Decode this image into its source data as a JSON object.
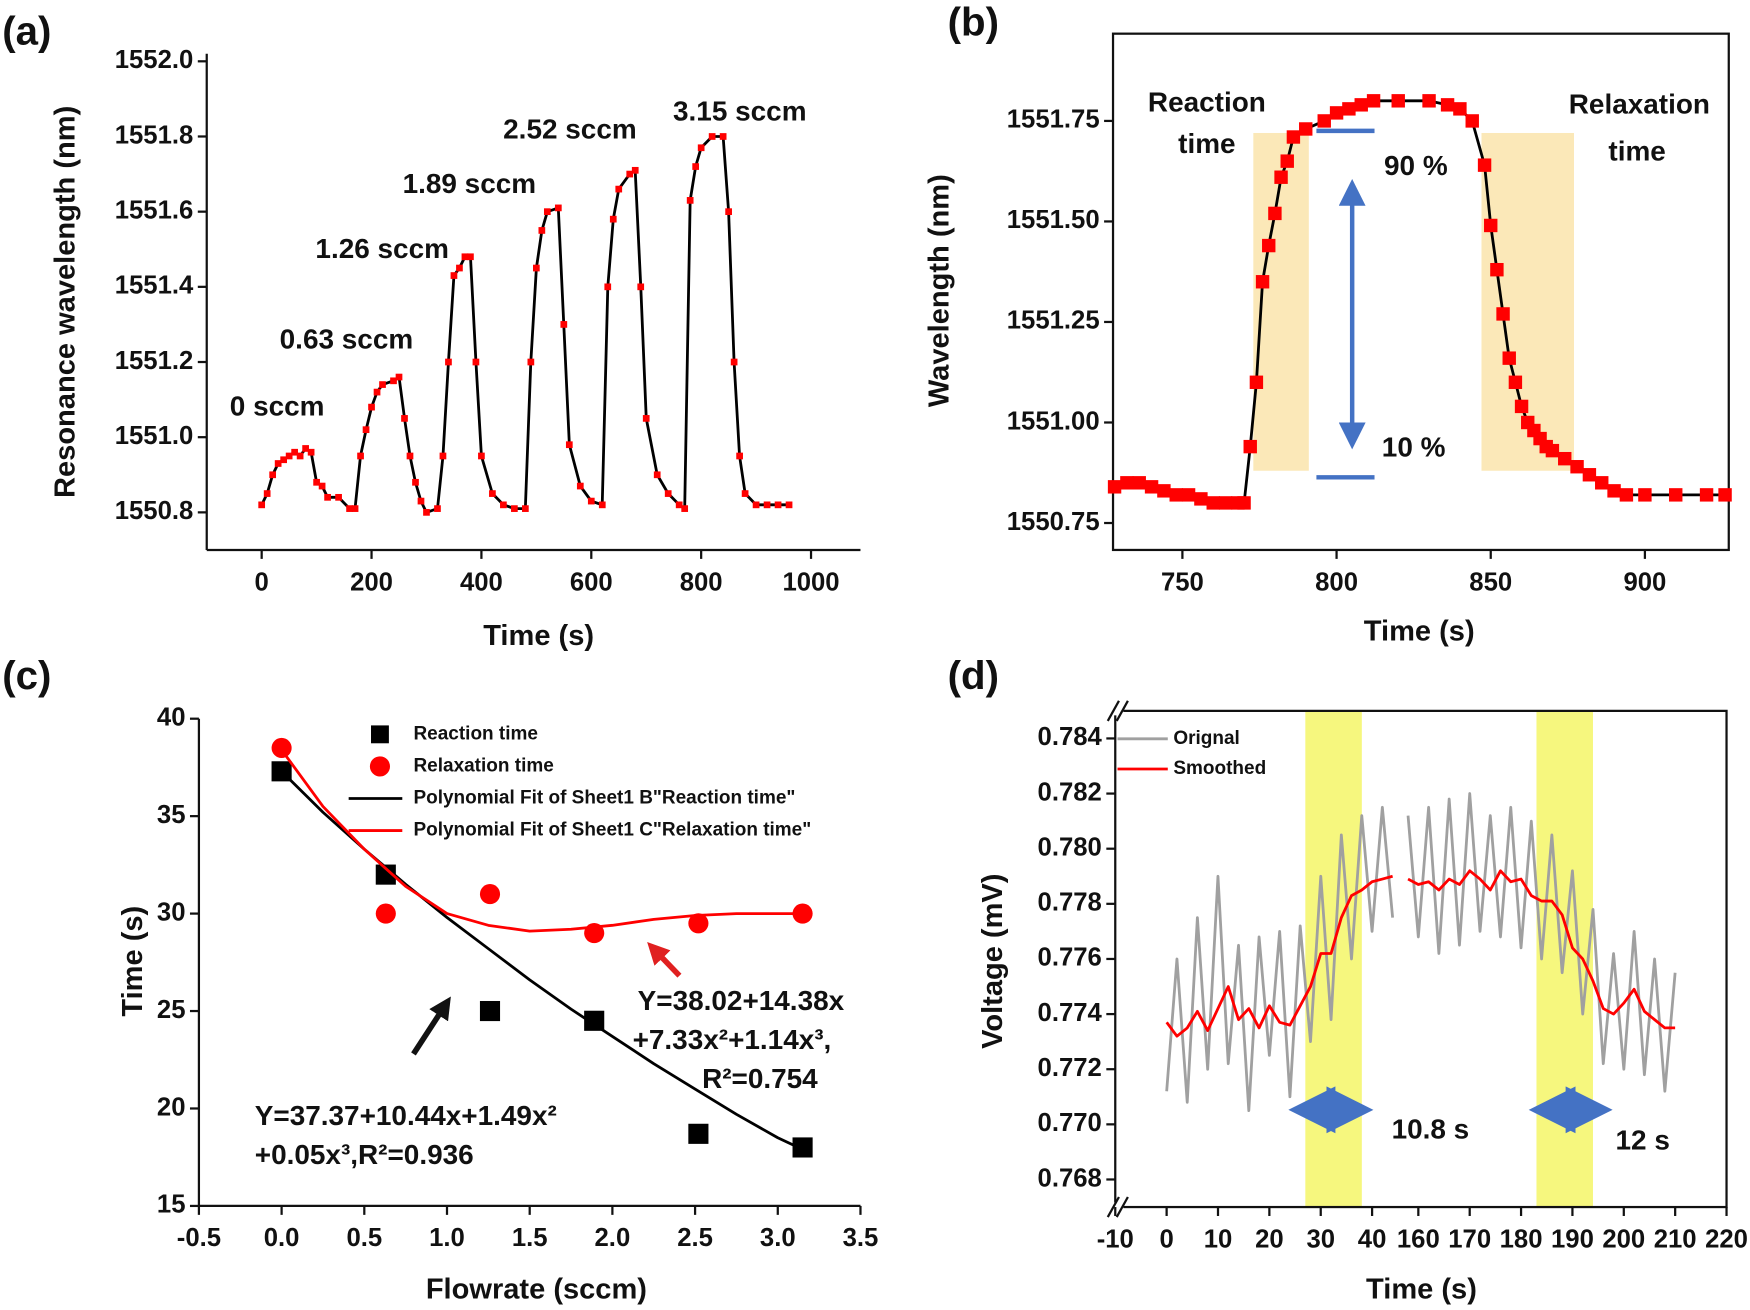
{
  "chart_data": [
    {
      "type": "line",
      "label": "(a)",
      "xlabel": "Time (s)",
      "ylabel": "Resonance wavelength (nm)",
      "xlim": [
        -100,
        1090
      ],
      "ylim": [
        1550.7,
        1552.02
      ],
      "xticks": [
        0,
        200,
        400,
        600,
        800,
        1000
      ],
      "yticks": [
        1550.8,
        {
          "value": 1551,
          "label": "1551.0"
        },
        1551.2,
        1551.4,
        1551.6,
        1551.8,
        {
          "value": 1552,
          "label": "1552.0"
        }
      ],
      "annotations": [
        "0 sccm",
        "0.63 sccm",
        "1.26 sccm",
        "1.89 sccm",
        "2.52 sccm",
        "3.15 sccm"
      ],
      "series": [
        {
          "mode": "line+markers",
          "color": "#ff0000",
          "line_color": "#000000",
          "x": [
            0,
            10,
            20,
            30,
            40,
            50,
            60,
            70,
            80,
            90,
            100,
            110,
            120,
            140,
            160,
            170,
            180,
            190,
            200,
            210,
            220,
            240,
            250,
            260,
            270,
            280,
            290,
            300,
            320,
            330,
            340,
            350,
            360,
            370,
            380,
            390,
            400,
            420,
            440,
            460,
            480,
            490,
            500,
            510,
            520,
            540,
            550,
            560,
            580,
            600,
            620,
            630,
            640,
            650,
            670,
            680,
            690,
            700,
            720,
            740,
            760,
            770,
            780,
            790,
            800,
            820,
            840,
            850,
            860,
            870,
            880,
            900,
            920,
            940,
            960
          ],
          "values": [
            1550.82,
            1550.85,
            1550.9,
            1550.93,
            1550.94,
            1550.95,
            1550.96,
            1550.95,
            1550.97,
            1550.96,
            1550.88,
            1550.87,
            1550.84,
            1550.84,
            1550.81,
            1550.81,
            1550.95,
            1551.02,
            1551.08,
            1551.12,
            1551.14,
            1551.15,
            1551.16,
            1551.05,
            1550.95,
            1550.88,
            1550.83,
            1550.8,
            1550.81,
            1550.95,
            1551.2,
            1551.43,
            1551.45,
            1551.48,
            1551.48,
            1551.2,
            1550.95,
            1550.85,
            1550.82,
            1550.81,
            1550.81,
            1551.2,
            1551.45,
            1551.55,
            1551.6,
            1551.61,
            1551.3,
            1550.98,
            1550.87,
            1550.83,
            1550.82,
            1551.4,
            1551.58,
            1551.66,
            1551.7,
            1551.71,
            1551.4,
            1551.05,
            1550.9,
            1550.85,
            1550.82,
            1550.81,
            1551.63,
            1551.72,
            1551.77,
            1551.8,
            1551.8,
            1551.6,
            1551.2,
            1550.95,
            1550.85,
            1550.82,
            1550.82,
            1550.82,
            1550.82
          ]
        }
      ]
    },
    {
      "type": "line",
      "label": "(b)",
      "xlabel": "Time (s)",
      "ylabel": "Wavelength (nm)",
      "xlim": [
        727.5,
        927.2
      ],
      "ylim": [
        1550.683,
        1551.967
      ],
      "xticks": [
        750,
        800,
        850,
        900
      ],
      "yticks": [
        1550.75,
        {
          "value": 1551,
          "label": "1551.00"
        },
        1551.25,
        {
          "value": 1551.5,
          "label": "1551.50"
        },
        1551.75
      ],
      "shaded_regions": [
        {
          "x": [
            773,
            791
          ],
          "y": [
            1550.88,
            1551.72
          ]
        },
        {
          "x": [
            847,
            877
          ],
          "y": [
            1550.88,
            1551.72
          ]
        }
      ],
      "shade_color": "#fbe8b8",
      "annotations": [
        "Reaction",
        "time",
        "Relaxation",
        "time",
        "90 %",
        "10 %"
      ],
      "series": [
        {
          "mode": "line+markers",
          "color": "#ff0000",
          "line_color": "#000000",
          "x": [
            728,
            732,
            736,
            740,
            744,
            748,
            752,
            756,
            760,
            764,
            768,
            770,
            772,
            774,
            776,
            778,
            780,
            782,
            784,
            786,
            790,
            796,
            800,
            804,
            808,
            812,
            820,
            830,
            836,
            840,
            844,
            848,
            850,
            852,
            854,
            856,
            858,
            860,
            862,
            864,
            866,
            868,
            870,
            874,
            878,
            882,
            886,
            890,
            894,
            900,
            910,
            920,
            926
          ],
          "values": [
            1550.84,
            1550.85,
            1550.85,
            1550.84,
            1550.83,
            1550.82,
            1550.82,
            1550.81,
            1550.8,
            1550.8,
            1550.8,
            1550.8,
            1550.94,
            1551.1,
            1551.35,
            1551.44,
            1551.52,
            1551.61,
            1551.65,
            1551.71,
            1551.73,
            1551.75,
            1551.77,
            1551.78,
            1551.79,
            1551.8,
            1551.8,
            1551.8,
            1551.79,
            1551.78,
            1551.75,
            1551.64,
            1551.49,
            1551.38,
            1551.27,
            1551.16,
            1551.1,
            1551.04,
            1551.0,
            1550.98,
            1550.96,
            1550.94,
            1550.93,
            1550.91,
            1550.89,
            1550.87,
            1550.85,
            1550.83,
            1550.82,
            1550.82,
            1550.82,
            1550.82,
            1550.82
          ]
        }
      ]
    },
    {
      "type": "scatter",
      "label": "(c)",
      "xlabel": "Flowrate (sccm)",
      "ylabel": "Time (s)",
      "xlim": [
        -0.5,
        3.5
      ],
      "ylim": [
        15,
        40
      ],
      "xticks": [
        -0.5,
        {
          "value": 0,
          "label": "0.0"
        },
        0.5,
        {
          "value": 1,
          "label": "1.0"
        },
        1.5,
        {
          "value": 2,
          "label": "2.0"
        },
        2.5,
        {
          "value": 3,
          "label": "3.0"
        },
        3.5
      ],
      "yticks": [
        15,
        20,
        25,
        30,
        35,
        40
      ],
      "legend": true,
      "annotations": [
        "Y=38.02+14.38x",
        "+7.33x²+1.14x³,",
        "R²=0.754",
        "Y=37.37+10.44x+1.49x²",
        "+0.05x³,R²=0.936"
      ],
      "series": [
        {
          "name": "Reaction time",
          "mode": "square",
          "color": "#000000",
          "x": [
            0,
            0.63,
            1.26,
            1.89,
            2.52,
            3.15
          ],
          "values": [
            37.3,
            32,
            25,
            24.5,
            18.7,
            18
          ]
        },
        {
          "name": "Relaxation time",
          "mode": "circle",
          "color": "#ff0000",
          "x": [
            0,
            0.63,
            1.26,
            1.89,
            2.52,
            3.15
          ],
          "values": [
            38.5,
            30,
            31,
            29,
            29.5,
            30
          ]
        },
        {
          "name": "Polynomial Fit of Sheet1 B\"Reaction time\"",
          "mode": "line",
          "color": "#000000",
          "x": [
            0,
            0.25,
            0.5,
            0.75,
            1,
            1.25,
            1.5,
            1.75,
            2,
            2.25,
            2.5,
            2.75,
            3,
            3.15
          ],
          "values": [
            37.3,
            35.2,
            33.3,
            31.5,
            29.8,
            28.2,
            26.6,
            25.1,
            23.7,
            22.3,
            21.0,
            19.7,
            18.5,
            17.9
          ]
        },
        {
          "name": "Polynomial Fit of Sheet1 C\"Relaxation time\"",
          "mode": "line",
          "color": "#ff0000",
          "x": [
            0,
            0.25,
            0.5,
            0.75,
            1,
            1.25,
            1.5,
            1.75,
            2,
            2.25,
            2.5,
            2.75,
            3,
            3.15
          ],
          "values": [
            38.4,
            35.5,
            33.3,
            31.4,
            30.0,
            29.4,
            29.1,
            29.2,
            29.4,
            29.7,
            29.9,
            30.0,
            30.0,
            30.0
          ]
        }
      ]
    },
    {
      "type": "line",
      "label": "(d)",
      "xlabel": "Time (s)",
      "ylabel": "Voltage (mV)",
      "xlim": [
        -10,
        220
      ],
      "xbreak": [
        46,
        157
      ],
      "ylim": [
        0.767,
        0.785
      ],
      "xticks": [
        -10,
        0,
        10,
        20,
        30,
        40,
        160,
        170,
        180,
        190,
        200,
        210,
        220
      ],
      "yticks": [
        0.768,
        {
          "value": 0.77,
          "label": "0.770"
        },
        0.772,
        0.774,
        0.776,
        0.778,
        {
          "value": 0.78,
          "label": "0.780"
        },
        0.782,
        0.784
      ],
      "shaded_regions": [
        {
          "x": [
            27,
            38
          ],
          "y": [
            0.767,
            0.785
          ]
        },
        {
          "x": [
            183,
            194
          ],
          "y": [
            0.767,
            0.785
          ]
        }
      ],
      "shade_color": "#f6f77e",
      "legend": true,
      "annotations": [
        "10.8 s",
        "12 s"
      ],
      "x": [
        0,
        2,
        4,
        6,
        8,
        10,
        12,
        14,
        16,
        18,
        20,
        22,
        24,
        26,
        28,
        30,
        32,
        34,
        36,
        38,
        40,
        42,
        44,
        null,
        158,
        160,
        162,
        164,
        166,
        168,
        170,
        172,
        174,
        176,
        178,
        180,
        182,
        184,
        186,
        188,
        190,
        192,
        194,
        196,
        198,
        200,
        202,
        204,
        206,
        208,
        210
      ],
      "series": [
        {
          "name": "Orignal",
          "mode": "line",
          "color": "#a0a0a0",
          "values": [
            0.7712,
            0.776,
            0.7708,
            0.7775,
            0.772,
            0.779,
            0.7722,
            0.7765,
            0.7705,
            0.7768,
            0.7725,
            0.777,
            0.771,
            0.7772,
            0.773,
            0.779,
            0.7738,
            0.7805,
            0.776,
            0.7812,
            0.777,
            0.7815,
            0.7775,
            null,
            0.7812,
            0.7768,
            0.7815,
            0.7762,
            0.7818,
            0.7765,
            0.782,
            0.777,
            0.7812,
            0.7768,
            0.7815,
            0.7764,
            0.781,
            0.776,
            0.7805,
            0.7755,
            0.7792,
            0.774,
            0.7778,
            0.7722,
            0.7762,
            0.772,
            0.777,
            0.7718,
            0.776,
            0.7712,
            0.7755
          ]
        },
        {
          "name": "Smoothed",
          "mode": "line",
          "color": "#ff0000",
          "values": [
            0.7737,
            0.7732,
            0.7735,
            0.7741,
            0.7734,
            0.7742,
            0.775,
            0.7738,
            0.7742,
            0.7735,
            0.7743,
            0.7737,
            0.7736,
            0.7743,
            0.775,
            0.7762,
            0.7762,
            0.7775,
            0.7783,
            0.7785,
            0.7788,
            0.7789,
            0.779,
            null,
            0.7789,
            0.7787,
            0.7788,
            0.7785,
            0.7789,
            0.7787,
            0.7792,
            0.7789,
            0.7785,
            0.7792,
            0.7788,
            0.7789,
            0.7783,
            0.7781,
            0.7781,
            0.7776,
            0.7764,
            0.776,
            0.7752,
            0.7742,
            0.774,
            0.7744,
            0.7749,
            0.7741,
            0.7738,
            0.7735,
            0.7735
          ]
        }
      ]
    }
  ]
}
